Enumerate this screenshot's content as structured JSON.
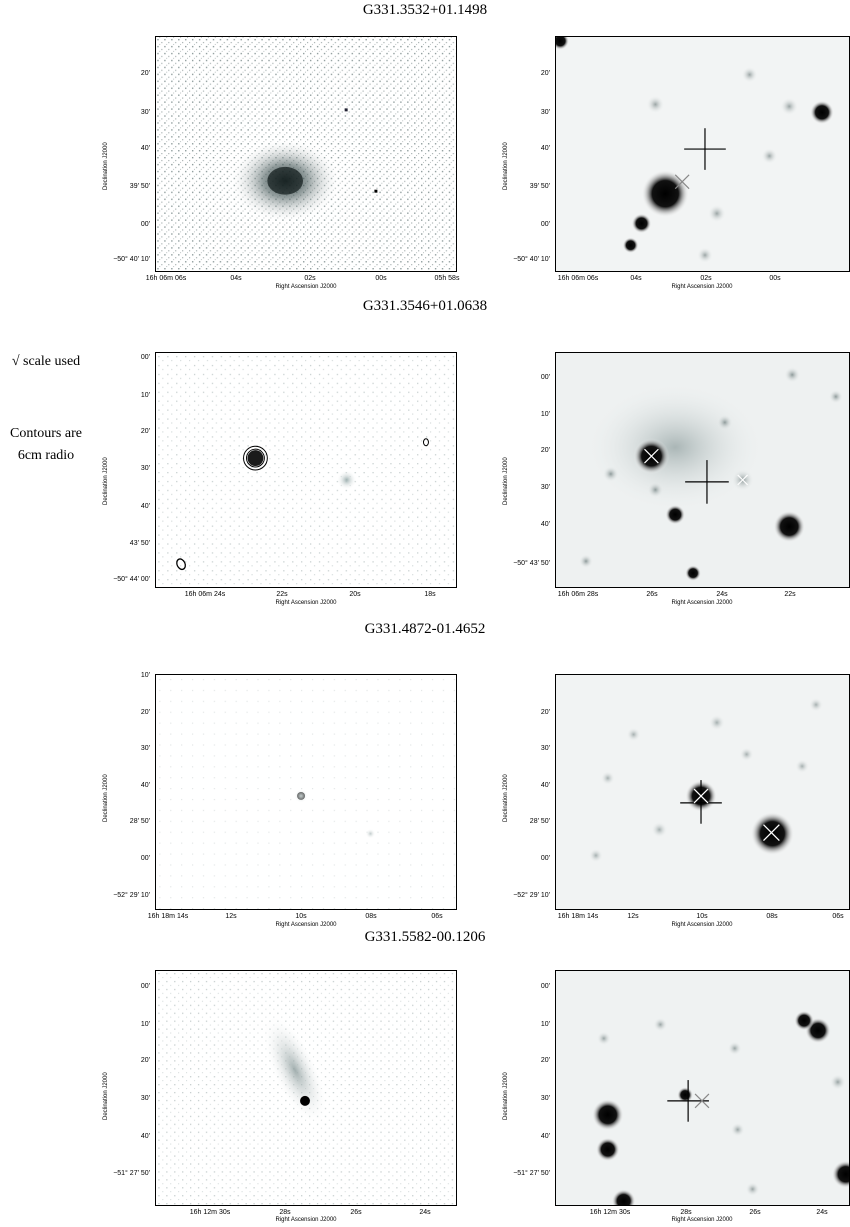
{
  "side_notes": {
    "scale": "√ scale used",
    "contours_line1": "Contours are",
    "contours_line2": "6cm radio"
  },
  "rows": [
    {
      "title": "G331.3532+01.1498",
      "left": {
        "y_ticks": [
          "20'",
          "30'",
          "40'",
          "39' 50'",
          "00'",
          "−50° 40' 10'"
        ],
        "x_ticks": [
          "16h 06m 06s",
          "04s",
          "02s",
          "00s",
          "05h 58s"
        ],
        "xlabel": "Right Ascension J2000",
        "ylabel": "Declination J2000"
      },
      "right": {
        "y_ticks": [
          "20'",
          "30'",
          "40'",
          "39' 50'",
          "00'",
          "−50° 40' 10'"
        ],
        "x_ticks": [
          "16h 06m 06s",
          "04s",
          "02s",
          "00s"
        ],
        "xlabel": "Right Ascension J2000",
        "ylabel": "Declination J2000"
      }
    },
    {
      "title": "G331.3546+01.0638",
      "left": {
        "y_ticks": [
          "00'",
          "10'",
          "20'",
          "30'",
          "40'",
          "43' 50'",
          "−50° 44' 00'"
        ],
        "x_ticks": [
          "16h 06m 24s",
          "22s",
          "20s",
          "18s"
        ],
        "xlabel": "Right Ascension J2000",
        "ylabel": "Declination J2000"
      },
      "right": {
        "y_ticks": [
          "00'",
          "10'",
          "20'",
          "30'",
          "40'",
          "−50° 43' 50'"
        ],
        "x_ticks": [
          "16h 06m 28s",
          "26s",
          "24s",
          "22s"
        ],
        "xlabel": "Right Ascension J2000",
        "ylabel": "Declination J2000"
      }
    },
    {
      "title": "G331.4872-01.4652",
      "left": {
        "y_ticks": [
          "10'",
          "20'",
          "30'",
          "40'",
          "28' 50'",
          "00'",
          "−52° 29' 10'"
        ],
        "x_ticks": [
          "16h 18m 14s",
          "12s",
          "10s",
          "08s",
          "06s"
        ],
        "xlabel": "Right Ascension J2000",
        "ylabel": "Declination J2000"
      },
      "right": {
        "y_ticks": [
          "20'",
          "30'",
          "40'",
          "28' 50'",
          "00'",
          "−52° 29' 10'"
        ],
        "x_ticks": [
          "16h 18m 14s",
          "12s",
          "10s",
          "08s",
          "06s"
        ],
        "xlabel": "Right Ascension J2000",
        "ylabel": "Declination J2000"
      }
    },
    {
      "title": "G331.5582-00.1206",
      "left": {
        "y_ticks": [
          "00'",
          "10'",
          "20'",
          "30'",
          "40'",
          "−51° 27' 50'"
        ],
        "x_ticks": [
          "16h 12m 30s",
          "28s",
          "26s",
          "24s"
        ],
        "xlabel": "Right Ascension J2000",
        "ylabel": "Declination J2000"
      },
      "right": {
        "y_ticks": [
          "00'",
          "10'",
          "20'",
          "30'",
          "40'",
          "−51° 27' 50'"
        ],
        "x_ticks": [
          "16h 12m 30s",
          "28s",
          "26s",
          "24s"
        ],
        "xlabel": "Right Ascension J2000",
        "ylabel": "Declination J2000"
      }
    }
  ]
}
